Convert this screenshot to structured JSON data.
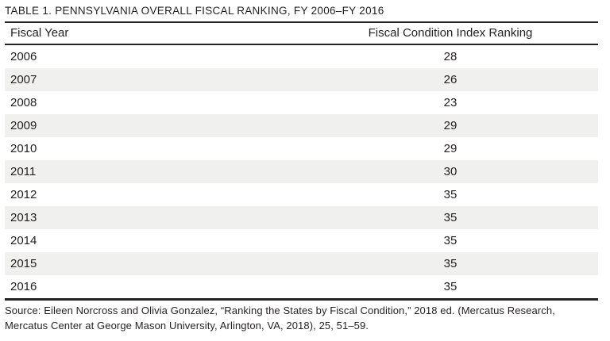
{
  "title": "TABLE 1. PENNSYLVANIA OVERALL FISCAL RANKING, FY 2006–FY 2016",
  "colors": {
    "text": "#231f20",
    "rule": "#262223",
    "row_stripe": "#f0f0ef",
    "background": "#ffffff"
  },
  "table": {
    "columns": [
      "Fiscal Year",
      "Fiscal Condition Index Ranking"
    ],
    "rows": [
      {
        "year": "2006",
        "ranking": "28"
      },
      {
        "year": "2007",
        "ranking": "26"
      },
      {
        "year": "2008",
        "ranking": "23"
      },
      {
        "year": "2009",
        "ranking": "29"
      },
      {
        "year": "2010",
        "ranking": "29"
      },
      {
        "year": "2011",
        "ranking": "30"
      },
      {
        "year": "2012",
        "ranking": "35"
      },
      {
        "year": "2013",
        "ranking": "35"
      },
      {
        "year": "2014",
        "ranking": "35"
      },
      {
        "year": "2015",
        "ranking": "35"
      },
      {
        "year": "2016",
        "ranking": "35"
      }
    ]
  },
  "source": {
    "lines": [
      "Source: Eileen Norcross and Olivia Gonzalez, “Ranking the States by Fiscal Condition,” 2018 ed. (Mercatus Research,",
      "Mercatus Center at George Mason University, Arlington, VA, 2018), 25, 51–59."
    ]
  }
}
